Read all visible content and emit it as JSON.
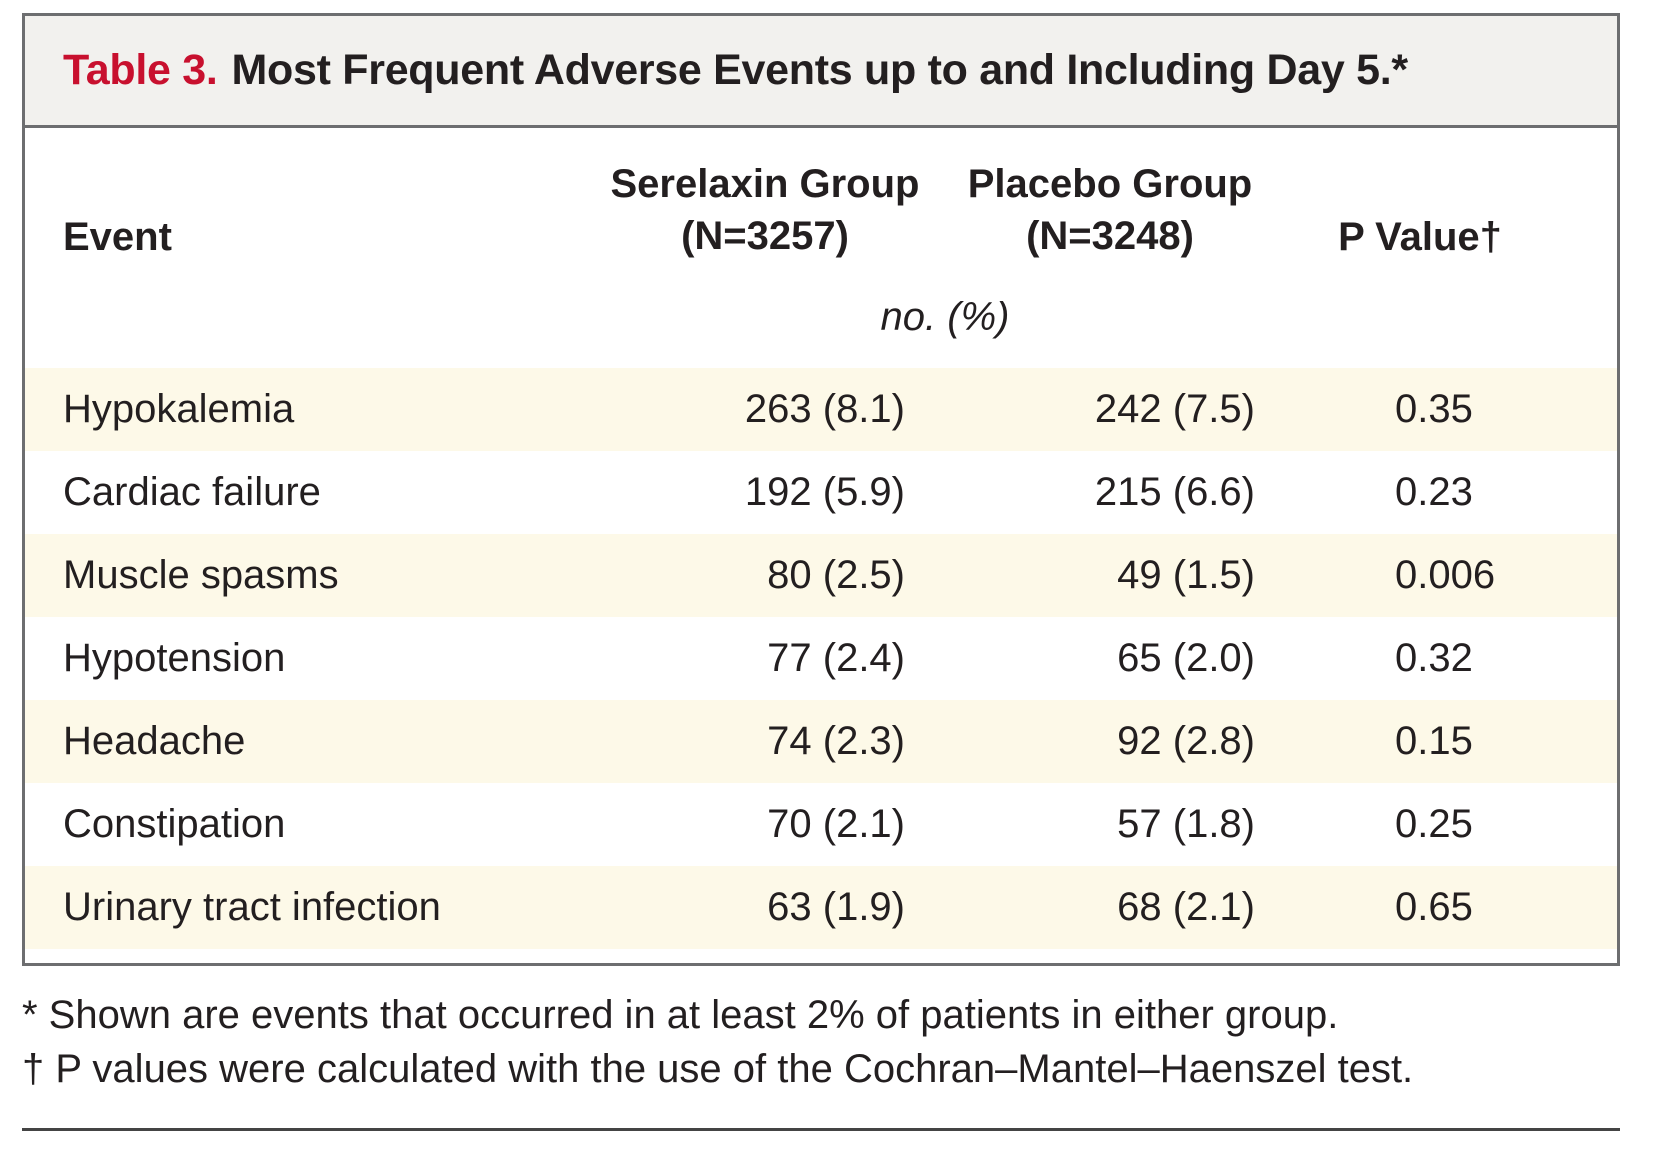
{
  "table": {
    "label": "Table 3.",
    "title": "Most Frequent Adverse Events up to and Including Day 5.*",
    "headers": {
      "event": "Event",
      "serelaxin_line1": "Serelaxin Group",
      "serelaxin_line2": "(N=3257)",
      "placebo_line1": "Placebo Group",
      "placebo_line2": "(N=3248)",
      "pvalue": "P Value†"
    },
    "units": "no. (%)",
    "rows": [
      {
        "event": "Hypokalemia",
        "serelaxin": "263 (8.1)",
        "placebo": "242 (7.5)",
        "p": "0.35"
      },
      {
        "event": "Cardiac failure",
        "serelaxin": "192 (5.9)",
        "placebo": "215 (6.6)",
        "p": "0.23"
      },
      {
        "event": "Muscle spasms",
        "serelaxin": "80 (2.5)",
        "placebo": "49 (1.5)",
        "p": "0.006"
      },
      {
        "event": "Hypotension",
        "serelaxin": "77 (2.4)",
        "placebo": "65 (2.0)",
        "p": "0.32"
      },
      {
        "event": "Headache",
        "serelaxin": "74 (2.3)",
        "placebo": "92 (2.8)",
        "p": "0.15"
      },
      {
        "event": "Constipation",
        "serelaxin": "70 (2.1)",
        "placebo": "57 (1.8)",
        "p": "0.25"
      },
      {
        "event": "Urinary tract infection",
        "serelaxin": "63 (1.9)",
        "placebo": "68 (2.1)",
        "p": "0.65"
      }
    ]
  },
  "footnotes": [
    "* Shown are events that occurred in at least 2% of patients in either group.",
    "† P values were calculated with the use of the Cochran–Mantel–Haenszel test."
  ],
  "colors": {
    "label_red": "#c8102e",
    "title_bg": "#f2f1ee",
    "row_shade": "#fdf9e8",
    "border": "#6d6e70"
  }
}
